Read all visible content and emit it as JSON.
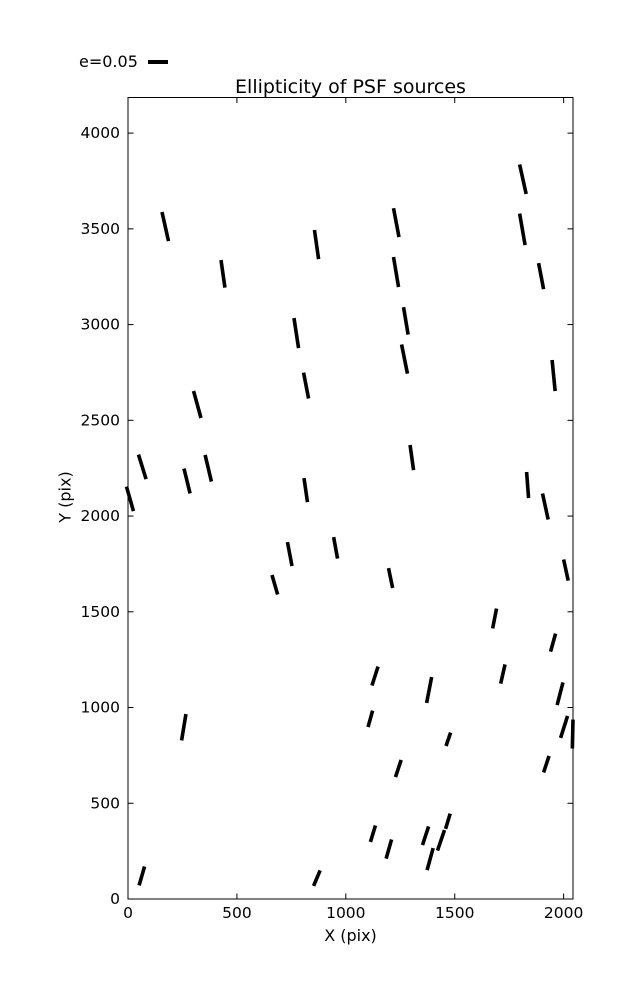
{
  "page": {
    "background_color": "#ffffff",
    "foreground_color": "#000000"
  },
  "chart_data": {
    "type": "quiver",
    "note": "whisker plot of PSF source ellipticity; segments are [x1,y1,x2,y2] in data units",
    "title": "Ellipticity of PSF sources",
    "xlabel": "X (pix)",
    "ylabel": "Y (pix)",
    "xlim": [
      0,
      2043
    ],
    "ylim": [
      0,
      4186
    ],
    "xticks": [
      0,
      500,
      1000,
      1500,
      2000
    ],
    "yticks": [
      0,
      500,
      1000,
      1500,
      2000,
      2500,
      3000,
      3500,
      4000
    ],
    "grid": false,
    "legend_label": "e=0.05",
    "legend_position": "upper-left-outside",
    "line_color": "#000000",
    "segments": [
      [
        156,
        3588,
        186,
        3436
      ],
      [
        1798,
        3836,
        1828,
        3682
      ],
      [
        1798,
        3580,
        1823,
        3415
      ],
      [
        1219,
        3608,
        1244,
        3457
      ],
      [
        856,
        3494,
        875,
        3342
      ],
      [
        1219,
        3353,
        1242,
        3196
      ],
      [
        427,
        3337,
        445,
        3193
      ],
      [
        1885,
        3321,
        1908,
        3185
      ],
      [
        762,
        3034,
        783,
        2877
      ],
      [
        1265,
        3091,
        1286,
        2948
      ],
      [
        1256,
        2896,
        1283,
        2744
      ],
      [
        301,
        2653,
        335,
        2512
      ],
      [
        1947,
        2815,
        1961,
        2653
      ],
      [
        806,
        2749,
        829,
        2614
      ],
      [
        48,
        2321,
        83,
        2193
      ],
      [
        1295,
        2371,
        1311,
        2240
      ],
      [
        354,
        2319,
        383,
        2180
      ],
      [
        257,
        2248,
        285,
        2118
      ],
      [
        808,
        2198,
        824,
        2073
      ],
      [
        -7,
        2154,
        25,
        2026
      ],
      [
        1830,
        2230,
        1839,
        2094
      ],
      [
        1903,
        2118,
        1929,
        1982
      ],
      [
        732,
        1864,
        753,
        1739
      ],
      [
        944,
        1890,
        962,
        1778
      ],
      [
        661,
        1692,
        687,
        1590
      ],
      [
        2000,
        1773,
        2021,
        1663
      ],
      [
        1196,
        1728,
        1215,
        1624
      ],
      [
        1692,
        1517,
        1674,
        1413
      ],
      [
        1963,
        1386,
        1940,
        1292
      ],
      [
        1148,
        1214,
        1120,
        1115
      ],
      [
        1731,
        1225,
        1711,
        1125
      ],
      [
        1997,
        1131,
        1970,
        1013
      ],
      [
        1394,
        1159,
        1371,
        1024
      ],
      [
        1123,
        984,
        1102,
        898
      ],
      [
        266,
        966,
        246,
        828
      ],
      [
        1481,
        869,
        1460,
        799
      ],
      [
        2018,
        956,
        1986,
        841
      ],
      [
        2043,
        937,
        2040,
        786
      ],
      [
        1933,
        747,
        1908,
        661
      ],
      [
        1254,
        726,
        1228,
        637
      ],
      [
        1479,
        446,
        1458,
        366
      ],
      [
        1136,
        384,
        1113,
        298
      ],
      [
        1380,
        379,
        1352,
        282
      ],
      [
        1453,
        360,
        1421,
        253
      ],
      [
        1210,
        311,
        1185,
        211
      ],
      [
        1401,
        266,
        1373,
        151
      ],
      [
        882,
        149,
        852,
        68
      ],
      [
        76,
        170,
        51,
        71
      ]
    ]
  }
}
